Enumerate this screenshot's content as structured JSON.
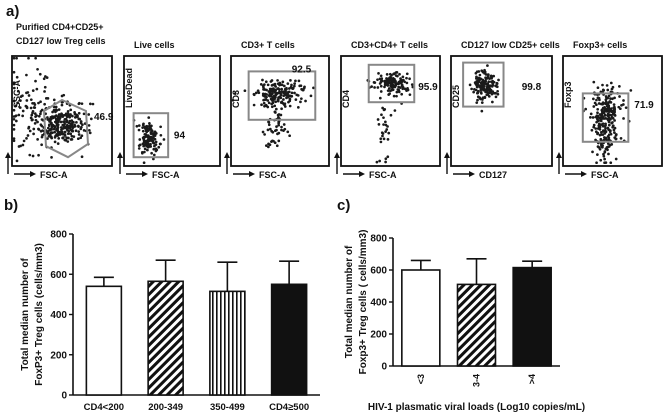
{
  "panel_labels": {
    "a": "a)",
    "b": "b)",
    "c": "c)"
  },
  "gating": {
    "plots": [
      {
        "title_lines": [
          "Purified CD4+CD25+",
          "CD127 low Treg cells"
        ],
        "ylabel": "SSC-A",
        "xlabel": "FSC-A",
        "percent": "46.9",
        "gate_shape": "polygon"
      },
      {
        "title_lines": [
          "Live cells"
        ],
        "ylabel": "LiveDead",
        "xlabel": "FSC-A",
        "percent": "94",
        "gate_shape": "rect"
      },
      {
        "title_lines": [
          "CD3+ T cells"
        ],
        "ylabel": "CD3",
        "xlabel": "FSC-A",
        "percent": "92.5",
        "gate_shape": "rect"
      },
      {
        "title_lines": [
          "CD3+CD4+ T cells"
        ],
        "ylabel": "CD4",
        "xlabel": "FSC-A",
        "percent": "95.9",
        "gate_shape": "rect"
      },
      {
        "title_lines": [
          "CD127 low CD25+ cells"
        ],
        "ylabel": "CD25",
        "xlabel": "CD127",
        "percent": "99.8",
        "gate_shape": "rect"
      },
      {
        "title_lines": [
          "Foxp3+ cells"
        ],
        "ylabel": "Foxp3",
        "xlabel": "FSC-A",
        "percent": "71.9",
        "gate_shape": "rect"
      }
    ]
  },
  "chart_data": [
    {
      "type": "bar",
      "panel": "b",
      "ylabel_lines": [
        "Total median  number of",
        "FoxP3+ Treg cells  (cells/mm3)"
      ],
      "categories": [
        "CD4<200",
        "200-349",
        "350-499",
        "CD4≥500"
      ],
      "values": [
        540,
        565,
        515,
        550
      ],
      "error_upper": [
        585,
        670,
        660,
        665
      ],
      "patterns": [
        "white",
        "diagonal",
        "vertical",
        "black"
      ],
      "ylim": [
        0,
        800
      ],
      "yticks": [
        0,
        200,
        400,
        600,
        800
      ]
    },
    {
      "type": "bar",
      "panel": "c",
      "ylabel_lines": [
        "Total median number of",
        "Foxp3+ Treg cells   ( cells/mm3)"
      ],
      "xlabel": "HIV-1 plasmatic viral loads (Log10 copies/mL)",
      "categories": [
        "<3",
        "3-4",
        ">4"
      ],
      "values": [
        600,
        510,
        615
      ],
      "error_upper": [
        660,
        670,
        655
      ],
      "patterns": [
        "white",
        "diagonal",
        "black"
      ],
      "ylim": [
        0,
        800
      ],
      "yticks": [
        0,
        200,
        400,
        600,
        800
      ]
    }
  ]
}
